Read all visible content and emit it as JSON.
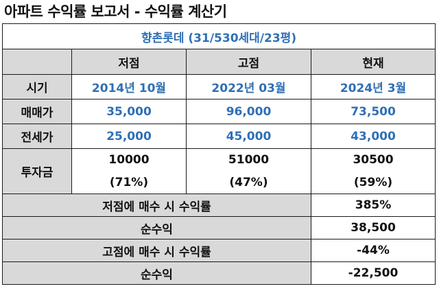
{
  "title": "아파트 수익률 보고서 - 수익률 계산기",
  "table": {
    "caption": "향촌롯데 (31/530세대/23평)",
    "columns": [
      "저점",
      "고점",
      "현재"
    ],
    "rows": [
      {
        "label": "시기",
        "values": [
          "2014년 10월",
          "2022년 03월",
          "2024년 3월"
        ]
      },
      {
        "label": "매매가",
        "values": [
          "35,000",
          "96,000",
          "73,500"
        ]
      },
      {
        "label": "전세가",
        "values": [
          "25,000",
          "45,000",
          "43,000"
        ]
      }
    ],
    "investment": {
      "label": "투자금",
      "amounts": [
        "10000",
        "51000",
        "30500"
      ],
      "ratios": [
        "(71%)",
        "(47%)",
        "(59%)"
      ]
    },
    "summary": [
      {
        "label": "저점에 매수 시 수익률",
        "value": "385%"
      },
      {
        "label": "순수익",
        "value": "38,500"
      },
      {
        "label": "고점에 매수 시 수익률",
        "value": "-44%"
      },
      {
        "label": "순수익",
        "value": "-22,500"
      }
    ]
  }
}
